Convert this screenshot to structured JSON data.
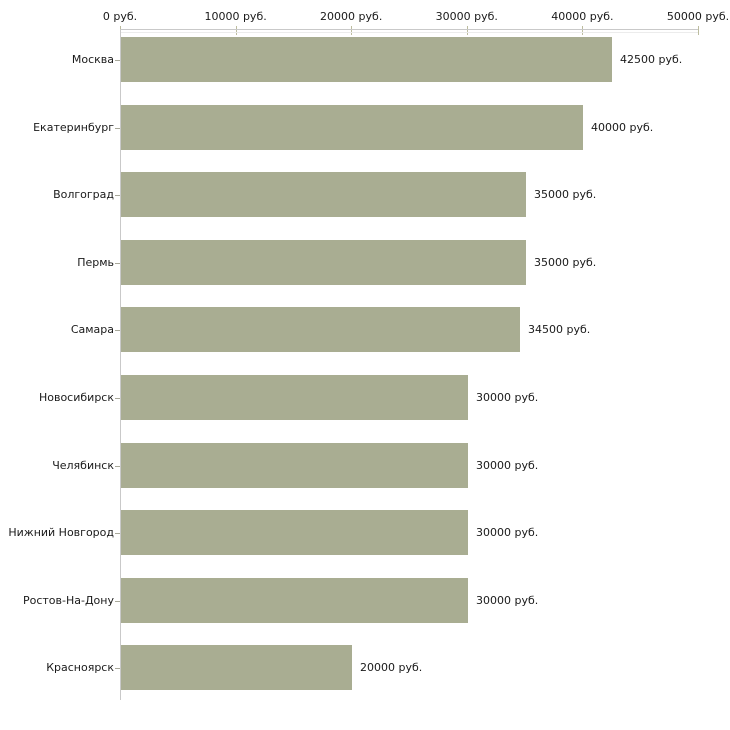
{
  "chart_data": {
    "type": "bar",
    "orientation": "horizontal",
    "title": "",
    "xlabel": "",
    "ylabel": "",
    "unit": "руб.",
    "grid": false,
    "legend": false,
    "categories": [
      "Москва",
      "Екатеринбург",
      "Волгоград",
      "Пермь",
      "Самара",
      "Новосибирск",
      "Челябинск",
      "Нижний Новгород",
      "Ростов-На-Дону",
      "Красноярск"
    ],
    "values": [
      42500,
      40000,
      35000,
      35000,
      34500,
      30000,
      30000,
      30000,
      30000,
      20000
    ],
    "value_labels": [
      "42500 руб.",
      "40000 руб.",
      "35000 руб.",
      "35000 руб.",
      "34500 руб.",
      "30000 руб.",
      "30000 руб.",
      "30000 руб.",
      "30000 руб.",
      "20000 руб."
    ],
    "x_axis": {
      "position": "top",
      "range": [
        0,
        50000
      ],
      "ticks": [
        0,
        10000,
        20000,
        30000,
        40000,
        50000
      ],
      "tick_labels": [
        "0 руб.",
        "10000 руб.",
        "20000 руб.",
        "30000 руб.",
        "40000 руб.",
        "50000 руб."
      ]
    },
    "colors": {
      "bar": "#a9ad92",
      "axis_line": "#c9c9c9",
      "axis_tick": "#bcbc9e",
      "text": "#1a1a1a",
      "background": "#ffffff"
    }
  }
}
